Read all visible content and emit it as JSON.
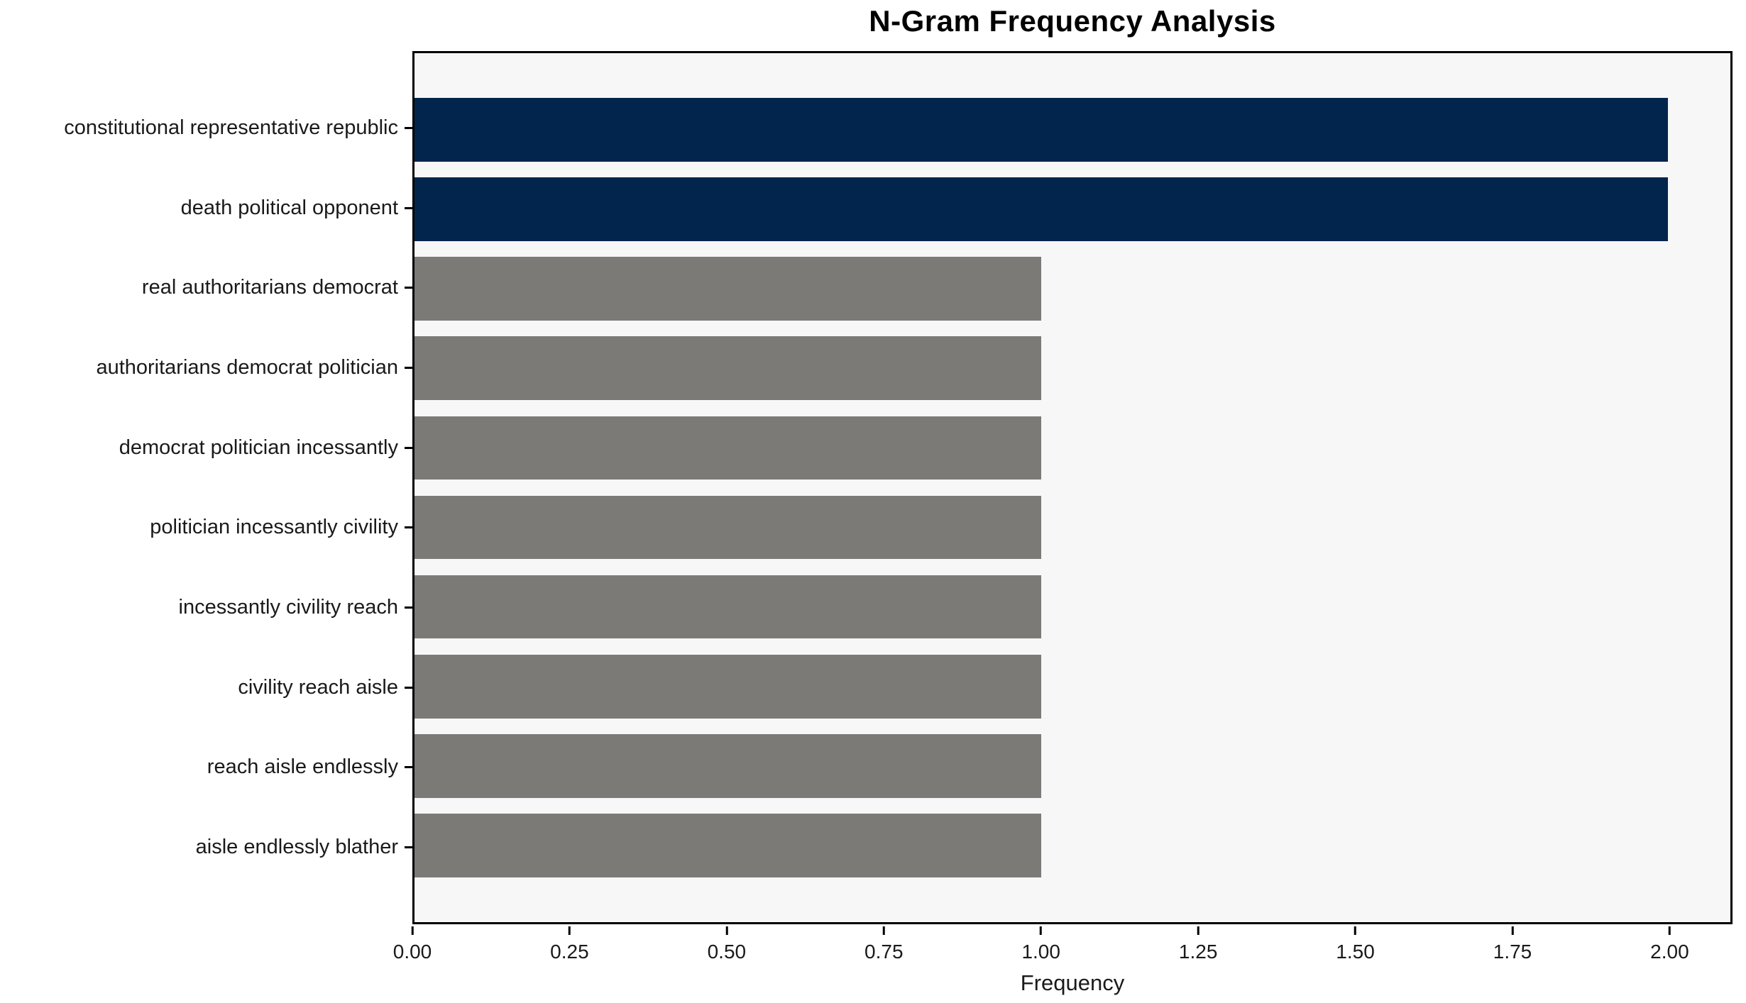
{
  "chart_data": {
    "type": "bar",
    "orientation": "horizontal",
    "title": "N-Gram Frequency Analysis",
    "xlabel": "Frequency",
    "ylabel": "",
    "categories": [
      "constitutional representative republic",
      "death political opponent",
      "real authoritarians democrat",
      "authoritarians democrat politician",
      "democrat politician incessantly",
      "politician incessantly civility",
      "incessantly civility reach",
      "civility reach aisle",
      "reach aisle endlessly",
      "aisle endlessly blather"
    ],
    "values": [
      2,
      2,
      1,
      1,
      1,
      1,
      1,
      1,
      1,
      1
    ],
    "bar_colors": [
      "#02254d",
      "#02254d",
      "#7b7a77",
      "#7b7a77",
      "#7b7a77",
      "#7b7a77",
      "#7b7a77",
      "#7b7a77",
      "#7b7a77",
      "#7b7a77"
    ],
    "xlim": [
      0,
      2.1
    ],
    "xticks": [
      "0.00",
      "0.25",
      "0.50",
      "0.75",
      "1.00",
      "1.25",
      "1.50",
      "1.75",
      "2.00"
    ],
    "grid": false,
    "legend": "none",
    "colors": {
      "highlight_bar": "#02254d",
      "default_bar": "#7b7a77",
      "plot_background": "#f7f7f7",
      "figure_background": "#ffffff",
      "spine": "#000000",
      "text": "#1a1a1a"
    }
  }
}
